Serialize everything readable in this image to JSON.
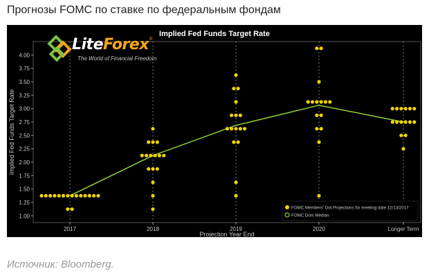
{
  "page": {
    "heading": "Прогнозы FOMC по ставке по федеральным фондам",
    "source": "Источник: Bloomberg."
  },
  "logo": {
    "brand_left": "Lite",
    "brand_right": "Forex",
    "registered": "®",
    "tagline": "The World of Financial Freedom",
    "colors": {
      "green": "#7ac143",
      "orange": "#f5a41d"
    }
  },
  "colors": {
    "background": "#000000",
    "dots": "#f0d400",
    "median_line": "#8fd43a",
    "axis_text": "#c8c8c8",
    "title_text": "#ffffff"
  },
  "chart_data": {
    "type": "scatter",
    "title": "Implied Fed Funds Target Rate",
    "xlabel": "Projection Year End",
    "ylabel": "Implied Fed Funds Target Rate",
    "categories": [
      "2017",
      "2018",
      "2019",
      "2020",
      "Longer Term"
    ],
    "ylim": [
      0.875,
      4.25
    ],
    "yticks": [
      "1.00",
      "1.25",
      "1.50",
      "1.75",
      "2.00",
      "2.25",
      "2.50",
      "2.75",
      "3.00",
      "3.25",
      "3.50",
      "3.75",
      "4.00"
    ],
    "grid": "vertical dashed",
    "legend_position": "bottom-right",
    "dot_projections": [
      {
        "category": "2017",
        "y": 1.375,
        "count": 14
      },
      {
        "category": "2017",
        "y": 1.125,
        "count": 2
      },
      {
        "category": "2018",
        "y": 2.625,
        "count": 1
      },
      {
        "category": "2018",
        "y": 2.375,
        "count": 3
      },
      {
        "category": "2018",
        "y": 2.125,
        "count": 6
      },
      {
        "category": "2018",
        "y": 1.875,
        "count": 3
      },
      {
        "category": "2018",
        "y": 1.625,
        "count": 1
      },
      {
        "category": "2018",
        "y": 1.375,
        "count": 1
      },
      {
        "category": "2018",
        "y": 1.125,
        "count": 1
      },
      {
        "category": "2019",
        "y": 3.625,
        "count": 1
      },
      {
        "category": "2019",
        "y": 3.375,
        "count": 2
      },
      {
        "category": "2019",
        "y": 3.125,
        "count": 1
      },
      {
        "category": "2019",
        "y": 2.875,
        "count": 3
      },
      {
        "category": "2019",
        "y": 2.625,
        "count": 5
      },
      {
        "category": "2019",
        "y": 2.375,
        "count": 2
      },
      {
        "category": "2019",
        "y": 1.625,
        "count": 1
      },
      {
        "category": "2019",
        "y": 1.375,
        "count": 1
      },
      {
        "category": "2020",
        "y": 4.125,
        "count": 2
      },
      {
        "category": "2020",
        "y": 3.5,
        "count": 1
      },
      {
        "category": "2020",
        "y": 3.125,
        "count": 6
      },
      {
        "category": "2020",
        "y": 2.875,
        "count": 2
      },
      {
        "category": "2020",
        "y": 2.625,
        "count": 2
      },
      {
        "category": "2020",
        "y": 2.375,
        "count": 1
      },
      {
        "category": "2020",
        "y": 1.375,
        "count": 1
      },
      {
        "category": "Longer Term",
        "y": 3.0,
        "count": 6
      },
      {
        "category": "Longer Term",
        "y": 2.75,
        "count": 6
      },
      {
        "category": "Longer Term",
        "y": 2.5,
        "count": 2
      },
      {
        "category": "Longer Term",
        "y": 2.25,
        "count": 1
      }
    ],
    "series": [
      {
        "name": "FOMC Members' Dot Projections for meeting date 12/13/2017",
        "marker": "dot"
      },
      {
        "name": "FOMC Dots Median",
        "marker": "line",
        "values": [
          1.375,
          2.125,
          2.6875,
          3.0625,
          2.75
        ]
      }
    ]
  }
}
